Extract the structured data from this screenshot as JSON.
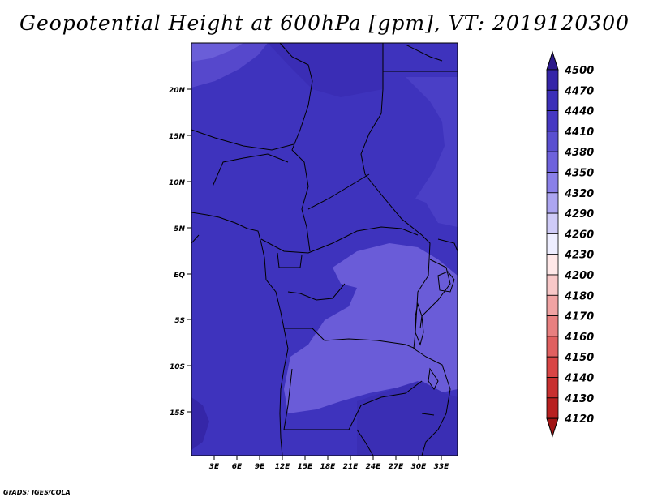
{
  "title": "Geopotential Height at 600hPa [gpm], VT: 2019120300",
  "credit": "GrADS: IGES/COLA",
  "map": {
    "lat_labels": [
      "20N",
      "15N",
      "10N",
      "5N",
      "EQ",
      "5S",
      "10S",
      "15S"
    ],
    "lon_labels": [
      "3E",
      "6E",
      "9E",
      "12E",
      "15E",
      "18E",
      "21E",
      "24E",
      "27E",
      "30E",
      "33E"
    ]
  },
  "colorbar": {
    "levels": [
      "4500",
      "4470",
      "4440",
      "4410",
      "4380",
      "4350",
      "4320",
      "4290",
      "4260",
      "4230",
      "4200",
      "4180",
      "4170",
      "4160",
      "4150",
      "4140",
      "4130",
      "4120"
    ],
    "colors": [
      "#2c1a8a",
      "#3525a8",
      "#3c2fb8",
      "#4638c2",
      "#5a4fd0",
      "#6e62dc",
      "#8a80e8",
      "#aca5f0",
      "#cfcbf7",
      "#eeeeff",
      "#ffe8e8",
      "#f8c8c8",
      "#f0a3a3",
      "#e88080",
      "#e06060",
      "#d84545",
      "#c83030",
      "#b82020",
      "#a01414"
    ]
  }
}
